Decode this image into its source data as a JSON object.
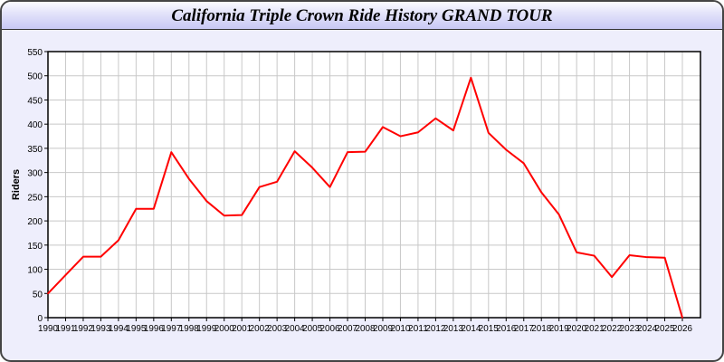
{
  "chart_data": {
    "type": "line",
    "title": "California Triple Crown Ride History GRAND TOUR",
    "xlabel": "",
    "ylabel": "Riders",
    "ylim": [
      0,
      550
    ],
    "yticks": [
      0,
      50,
      100,
      150,
      200,
      250,
      300,
      350,
      400,
      450,
      500,
      550
    ],
    "grid": true,
    "line_color": "#ff0000",
    "categories": [
      "1990",
      "1991",
      "1992",
      "1993",
      "1994",
      "1995",
      "1996",
      "1997",
      "1998",
      "1999",
      "2000",
      "2001",
      "2002",
      "2003",
      "2004",
      "2005",
      "2006",
      "2007",
      "2008",
      "2009",
      "2010",
      "2011",
      "2012",
      "2013",
      "2014",
      "2015",
      "2016",
      "2017",
      "2018",
      "2019",
      "2020",
      "2021",
      "2022",
      "2023",
      "2024",
      "2025",
      "2026"
    ],
    "values": [
      50,
      88,
      126,
      126,
      160,
      225,
      225,
      342,
      287,
      241,
      211,
      212,
      270,
      281,
      344,
      310,
      270,
      342,
      343,
      394,
      375,
      383,
      412,
      387,
      496,
      382,
      347,
      319,
      259,
      213,
      135,
      128,
      84,
      129,
      125,
      124,
      0
    ]
  }
}
